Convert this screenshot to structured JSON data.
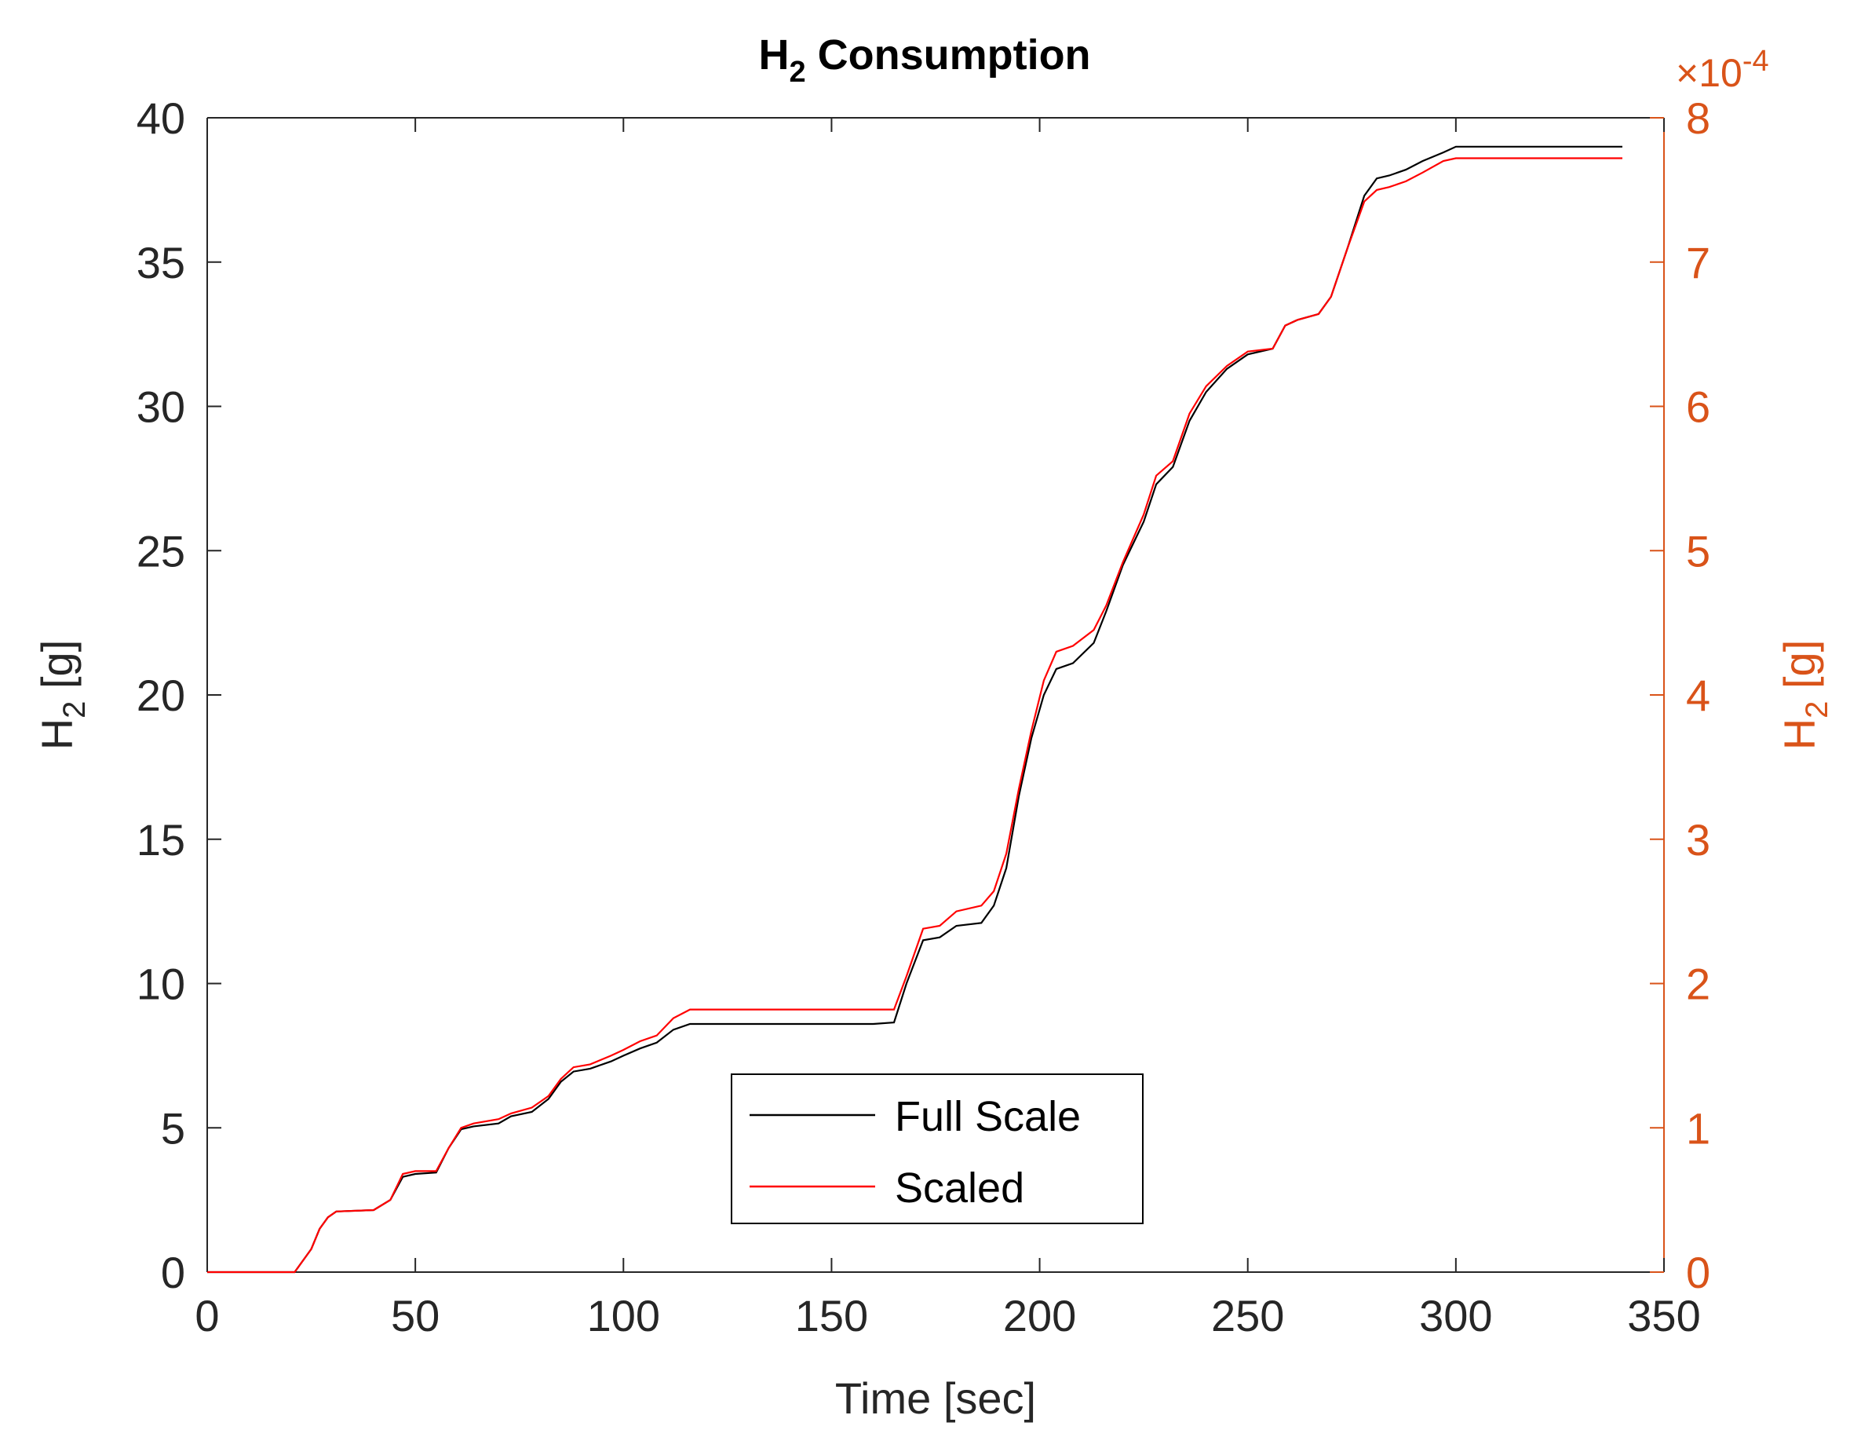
{
  "chart_data": {
    "type": "line",
    "title": "H",
    "title_sub": "2",
    "title_rest": " Consumption",
    "xlabel": "Time [sec]",
    "ylabel_left": "H",
    "ylabel_left_sub": "2",
    "ylabel_left_rest": " [g]",
    "ylabel_right": "H",
    "ylabel_right_sub": "2",
    "ylabel_right_rest": " [g]",
    "right_exponent_prefix": "×10",
    "right_exponent_power": "-4",
    "xlim": [
      0,
      350
    ],
    "ylim_left": [
      0,
      40
    ],
    "ylim_right": [
      0,
      8
    ],
    "x_ticks": [
      "0",
      "50",
      "100",
      "150",
      "200",
      "250",
      "300",
      "350"
    ],
    "y_left_ticks": [
      "0",
      "5",
      "10",
      "15",
      "20",
      "25",
      "30",
      "35",
      "40"
    ],
    "y_right_ticks": [
      "0",
      "1",
      "2",
      "3",
      "4",
      "5",
      "6",
      "7",
      "8"
    ],
    "grid": false,
    "legend_position": "bottom-center",
    "colors": {
      "full_scale": "#000000",
      "scaled": "#FF0000",
      "right_axis": "#D95319",
      "axis": "#262626"
    },
    "series": [
      {
        "name": "Full Scale",
        "axis": "left",
        "x": [
          0,
          21,
          25,
          27,
          29,
          31,
          40,
          44,
          47,
          50,
          55,
          58,
          61,
          64,
          70,
          73,
          78,
          82,
          85,
          88,
          92,
          97,
          100,
          104,
          108,
          112,
          116,
          160,
          165,
          168,
          172,
          176,
          180,
          186,
          189,
          192,
          195,
          198,
          201,
          204,
          208,
          213,
          216,
          220,
          225,
          228,
          232,
          236,
          240,
          245,
          250,
          256,
          259,
          262,
          267,
          270,
          274,
          278,
          281,
          284,
          288,
          292,
          297,
          300,
          340
        ],
        "y": [
          0,
          0,
          0.8,
          1.5,
          1.9,
          2.1,
          2.15,
          2.5,
          3.3,
          3.4,
          3.45,
          4.3,
          4.95,
          5.05,
          5.15,
          5.4,
          5.55,
          6.0,
          6.6,
          6.95,
          7.05,
          7.3,
          7.5,
          7.75,
          7.95,
          8.4,
          8.6,
          8.6,
          8.65,
          10.0,
          11.5,
          11.6,
          12.0,
          12.1,
          12.7,
          14.0,
          16.5,
          18.5,
          20.0,
          20.9,
          21.1,
          21.8,
          22.9,
          24.5,
          26.0,
          27.3,
          27.9,
          29.5,
          30.5,
          31.3,
          31.8,
          32.0,
          32.8,
          33.0,
          33.2,
          33.8,
          35.5,
          37.3,
          37.9,
          38.0,
          38.2,
          38.5,
          38.8,
          39.0,
          39.0
        ]
      },
      {
        "name": "Scaled",
        "axis": "right",
        "x": [
          0,
          21,
          25,
          27,
          29,
          31,
          40,
          44,
          47,
          50,
          55,
          58,
          61,
          64,
          70,
          73,
          78,
          82,
          85,
          88,
          92,
          97,
          100,
          104,
          108,
          112,
          116,
          160,
          165,
          168,
          172,
          176,
          180,
          186,
          189,
          192,
          195,
          198,
          201,
          204,
          208,
          213,
          216,
          220,
          225,
          228,
          232,
          236,
          240,
          245,
          250,
          256,
          259,
          262,
          267,
          270,
          274,
          278,
          281,
          284,
          288,
          292,
          297,
          300,
          340
        ],
        "y": [
          0,
          0,
          0.16,
          0.3,
          0.38,
          0.42,
          0.43,
          0.5,
          0.68,
          0.7,
          0.7,
          0.86,
          1.0,
          1.03,
          1.06,
          1.1,
          1.14,
          1.22,
          1.34,
          1.42,
          1.44,
          1.5,
          1.54,
          1.6,
          1.64,
          1.76,
          1.82,
          1.82,
          1.82,
          2.05,
          2.38,
          2.4,
          2.5,
          2.54,
          2.64,
          2.9,
          3.35,
          3.75,
          4.1,
          4.3,
          4.34,
          4.45,
          4.62,
          4.92,
          5.25,
          5.52,
          5.62,
          5.95,
          6.14,
          6.28,
          6.38,
          6.4,
          6.56,
          6.6,
          6.64,
          6.76,
          7.1,
          7.42,
          7.5,
          7.52,
          7.56,
          7.62,
          7.7,
          7.72,
          7.72
        ]
      }
    ]
  }
}
